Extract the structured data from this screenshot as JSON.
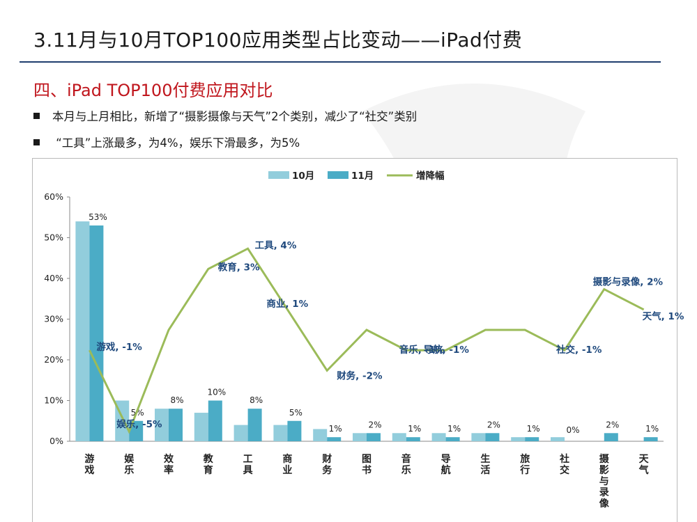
{
  "slide": {
    "title": "3.11月与10月TOP100应用类型占比变动——iPad付费",
    "subtitle": "四、iPad TOP100付费应用对比",
    "bullets": [
      "本月与上月相比，新增了“摄影摄像与天气”2个类别，减少了“社交”类别",
      " “工具”上涨最多，为4%，娱乐下滑最多，为5%"
    ]
  },
  "colors": {
    "series_10": "#92cddc",
    "series_11": "#4bacc6",
    "change_line": "#9bbb59",
    "change_label": "#1f497d",
    "title_rule": "#1f3e6e",
    "subtitle": "#c0161d"
  },
  "chart_data": {
    "type": "bar",
    "legend_position": "top",
    "categories": [
      "游戏",
      "娱乐",
      "效率",
      "教育",
      "工具",
      "商业",
      "财务",
      "图书",
      "音乐",
      "导航",
      "生活",
      "旅行",
      "社交",
      "摄影与录像",
      "天气"
    ],
    "ylim": [
      0,
      60
    ],
    "yticks": [
      "0%",
      "10%",
      "20%",
      "30%",
      "40%",
      "50%",
      "60%"
    ],
    "series": [
      {
        "name": "10月",
        "values": [
          54,
          10,
          8,
          7,
          4,
          4,
          3,
          2,
          2,
          2,
          2,
          1,
          1,
          0,
          0
        ]
      },
      {
        "name": "11月",
        "values": [
          53,
          5,
          8,
          10,
          8,
          5,
          1,
          2,
          1,
          1,
          2,
          1,
          0,
          2,
          1
        ],
        "labels": [
          "53%",
          "5%",
          "8%",
          "10%",
          "8%",
          "5%",
          "1%",
          "2%",
          "1%",
          "1%",
          "2%",
          "1%",
          "0%",
          "2%",
          "1%"
        ]
      }
    ],
    "line": {
      "name": "增降幅",
      "values": [
        -1,
        -5,
        0,
        3,
        4,
        1,
        -2,
        0,
        -1,
        -1,
        0,
        0,
        -1,
        2,
        1
      ],
      "labels": [
        "游戏, -1%",
        "娱乐, -5%",
        "",
        "教育, 3%",
        "工具, 4%",
        "商业, 1%",
        "财务, -2%",
        "",
        "音乐, -1%",
        "导航, -1%",
        "",
        "",
        "社交, -1%",
        "摄影与录像, 2%",
        "天气, 1%"
      ]
    }
  }
}
